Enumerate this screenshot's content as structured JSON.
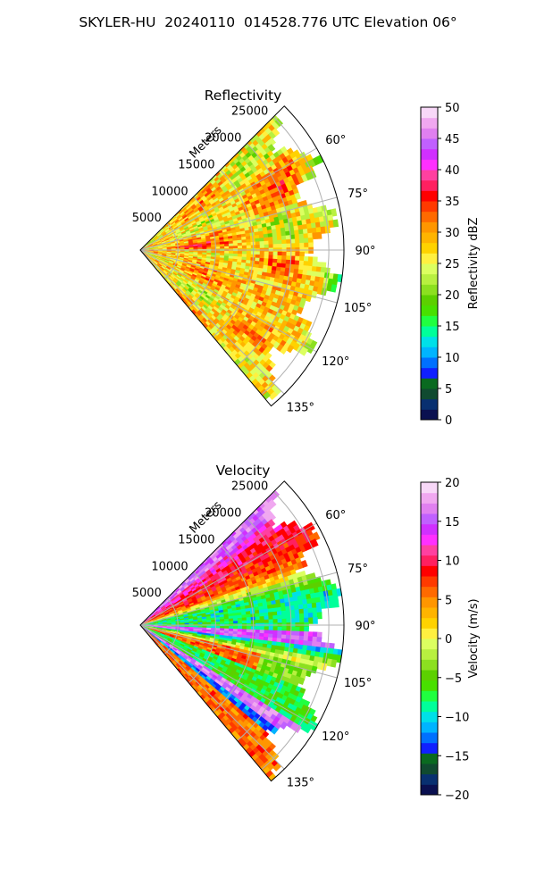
{
  "figure": {
    "suptitle": "SKYLER-HU  20240110  014528.776 UTC Elevation 06°"
  },
  "chart_data": [
    {
      "type": "heatmap",
      "projection": "polar-sector",
      "title": "Reflectivity",
      "range_axis_label": "Meters",
      "range_ticks": [
        5000,
        10000,
        15000,
        20000,
        25000
      ],
      "range_limit": [
        0,
        27000
      ],
      "azimuth_ticks_deg": [
        60,
        75,
        90,
        105,
        120,
        135
      ],
      "azimuth_tick_labels": [
        "60°",
        "75°",
        "90°",
        "105°",
        "120°",
        "135°"
      ],
      "azimuth_limit_deg": [
        45,
        140
      ],
      "grid": true,
      "colorbar": {
        "label": "Reflectivity dBZ",
        "ticks": [
          0,
          5,
          10,
          15,
          20,
          25,
          30,
          35,
          40,
          45,
          50
        ],
        "limit": [
          0,
          50
        ],
        "colors": [
          "#0a1050",
          "#083070",
          "#104a30",
          "#0a6a20",
          "#1020ff",
          "#0070ff",
          "#00b4ff",
          "#00e0e8",
          "#00ff9a",
          "#20ff40",
          "#48e000",
          "#5cd000",
          "#8ce020",
          "#b8f040",
          "#dcff60",
          "#fff040",
          "#ffd200",
          "#ffb400",
          "#ff9600",
          "#ff6a00",
          "#ff3a00",
          "#ff0000",
          "#ff2060",
          "#ff40a0",
          "#ff30ff",
          "#d030ff",
          "#c060ff",
          "#e080f0",
          "#f0a8f0",
          "#f8d8f8"
        ]
      },
      "field": {
        "description_value_range": [
          18,
          40
        ],
        "dominant_value": 28,
        "notes": "mostly 25-35 dBZ echoes (yellow/orange) with red cores near 35-38 dBZ, green fringes near the outer edge"
      }
    },
    {
      "type": "heatmap",
      "projection": "polar-sector",
      "title": "Velocity",
      "range_axis_label": "Meters",
      "range_ticks": [
        5000,
        10000,
        15000,
        20000,
        25000
      ],
      "range_limit": [
        0,
        27000
      ],
      "azimuth_ticks_deg": [
        60,
        75,
        90,
        105,
        120,
        135
      ],
      "azimuth_tick_labels": [
        "60°",
        "75°",
        "90°",
        "105°",
        "120°",
        "135°"
      ],
      "azimuth_limit_deg": [
        45,
        140
      ],
      "grid": true,
      "colorbar": {
        "label": "Velocity (m/s)",
        "ticks": [
          -20,
          -15,
          -10,
          -5,
          0,
          5,
          10,
          15,
          20
        ],
        "limit": [
          -20,
          20
        ],
        "colors": [
          "#0a1050",
          "#083070",
          "#104a30",
          "#0a6a20",
          "#1020ff",
          "#0070ff",
          "#00b4ff",
          "#00e0e8",
          "#00ff9a",
          "#20ff40",
          "#48e000",
          "#5cd000",
          "#8ce020",
          "#b8f040",
          "#dcff60",
          "#fff040",
          "#ffd200",
          "#ffb400",
          "#ff9600",
          "#ff6a00",
          "#ff3a00",
          "#ff0000",
          "#ff2060",
          "#ff40a0",
          "#ff30ff",
          "#d030ff",
          "#c060ff",
          "#e080f0",
          "#f0a8f0",
          "#f8d8f8"
        ]
      },
      "field": {
        "description_value_range": [
          -14,
          18
        ],
        "notes": "banded pattern: +10 to +17 m/s (red/magenta) near 45-70°, -10 to -8 m/s (green/cyan) near 75-95°, folded magenta/cyan band near 100-130°"
      }
    }
  ]
}
